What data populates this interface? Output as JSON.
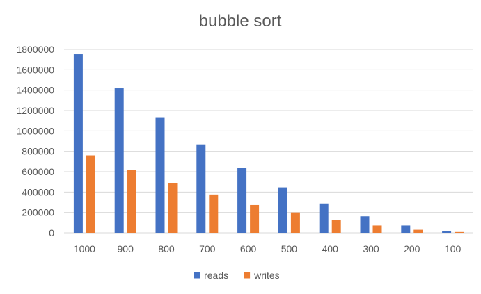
{
  "chart_data": {
    "type": "bar",
    "title": "bubble sort",
    "xlabel": "",
    "ylabel": "",
    "categories": [
      "1000",
      "900",
      "800",
      "700",
      "600",
      "500",
      "400",
      "300",
      "200",
      "100"
    ],
    "series": [
      {
        "name": "reads",
        "color": "#4472c4",
        "values": [
          1752000,
          1418000,
          1128000,
          868000,
          635000,
          446000,
          288000,
          162000,
          72000,
          17000
        ]
      },
      {
        "name": "writes",
        "color": "#ed7d31",
        "values": [
          760000,
          615000,
          487000,
          376000,
          273000,
          200000,
          124000,
          72000,
          30000,
          8000
        ]
      }
    ],
    "ylim": [
      0,
      1800000
    ],
    "yticks": [
      0,
      200000,
      400000,
      600000,
      800000,
      1000000,
      1200000,
      1400000,
      1600000,
      1800000
    ],
    "ytick_labels": [
      "0",
      "200000",
      "400000",
      "600000",
      "800000",
      "1000000",
      "1200000",
      "1400000",
      "1600000",
      "1800000"
    ],
    "grid": true,
    "legend_position": "bottom"
  }
}
